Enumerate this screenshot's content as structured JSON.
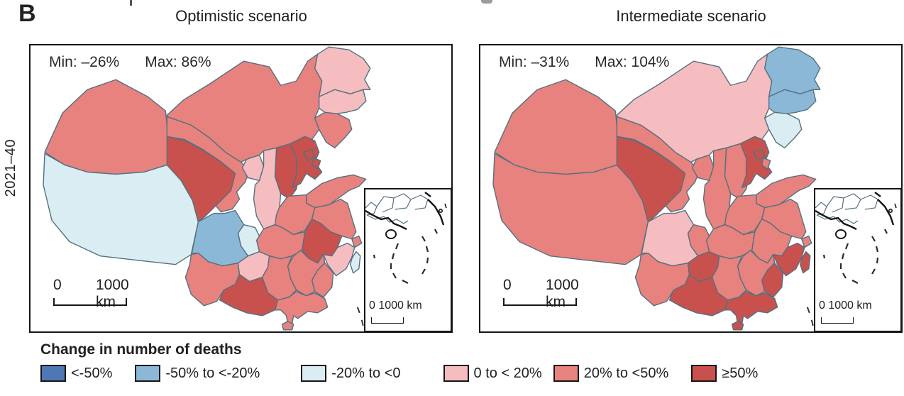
{
  "panel_label": "B",
  "row_label": "2021–40",
  "class_colors": {
    "lt_n50": "#4d78b3",
    "n50_n20": "#8cb8d8",
    "n20_0": "#daedf3",
    "p0_20": "#f6bdc0",
    "p20_50": "#e8827e",
    "ge_50": "#c9514d"
  },
  "map_style": {
    "province_border": "#53717f",
    "frame": "#161616"
  },
  "maps": [
    {
      "title": "Optimistic scenario",
      "min_label": "Min: –26%",
      "max_label": "Max: 86%",
      "scale_zero": "0",
      "scale_dist": "1000 km",
      "inset_scale": "0  1000 km",
      "provinces": {
        "xinjiang": "p20_50",
        "tibet": "n20_0",
        "inner_mongolia": "p20_50",
        "gansu": "p20_50",
        "qinghai": "ge_50",
        "ningxia": "p0_20",
        "shaanxi": "p0_20",
        "shanxi": "ge_50",
        "hebei": "ge_50",
        "heilongjiang": "p0_20",
        "jilin": "p0_20",
        "liaoning": "p20_50",
        "shandong": "p20_50",
        "henan": "p20_50",
        "jiangsu": "p20_50",
        "anhui": "ge_50",
        "hubei": "p20_50",
        "chongqing": "n20_0",
        "sichuan": "n50_n20",
        "yunnan": "p20_50",
        "guizhou": "p0_20",
        "hunan": "p20_50",
        "jiangxi": "p20_50",
        "zhejiang": "p0_20",
        "shanghai": "p20_50",
        "fujian": "p20_50",
        "guangxi": "ge_50",
        "guangdong": "p20_50",
        "hainan": "p20_50",
        "taiwan": "n20_0",
        "beijing": "ge_50",
        "tianjin": "ge_50"
      }
    },
    {
      "title": "Intermediate scenario",
      "min_label": "Min: –31%",
      "max_label": "Max: 104%",
      "scale_zero": "0",
      "scale_dist": "1000 km",
      "inset_scale": "0  1000 km",
      "provinces": {
        "xinjiang": "p20_50",
        "tibet": "p20_50",
        "inner_mongolia": "p0_20",
        "gansu": "p20_50",
        "qinghai": "ge_50",
        "ningxia": "p20_50",
        "shaanxi": "p20_50",
        "shanxi": "p20_50",
        "hebei": "ge_50",
        "heilongjiang": "n50_n20",
        "jilin": "n50_n20",
        "liaoning": "n20_0",
        "shandong": "p20_50",
        "henan": "p20_50",
        "jiangsu": "p20_50",
        "anhui": "p20_50",
        "hubei": "p20_50",
        "chongqing": "p20_50",
        "sichuan": "p0_20",
        "yunnan": "p20_50",
        "guizhou": "ge_50",
        "hunan": "p20_50",
        "jiangxi": "p20_50",
        "zhejiang": "ge_50",
        "shanghai": "p20_50",
        "fujian": "ge_50",
        "guangxi": "ge_50",
        "guangdong": "ge_50",
        "hainan": "ge_50",
        "taiwan": "ge_50",
        "beijing": "ge_50",
        "tianjin": "p20_50"
      }
    }
  ],
  "legend": {
    "title": "Change in number of deaths",
    "items": [
      {
        "label": "<-50%",
        "class_key": "lt_n50"
      },
      {
        "label": "-50% to <-20%",
        "class_key": "n50_n20"
      },
      {
        "label": "-20% to <0",
        "class_key": "n20_0"
      },
      {
        "label": "0 to < 20%",
        "class_key": "p0_20"
      },
      {
        "label": "20% to <50%",
        "class_key": "p20_50"
      },
      {
        "label": "≥50%",
        "class_key": "ge_50"
      }
    ]
  }
}
